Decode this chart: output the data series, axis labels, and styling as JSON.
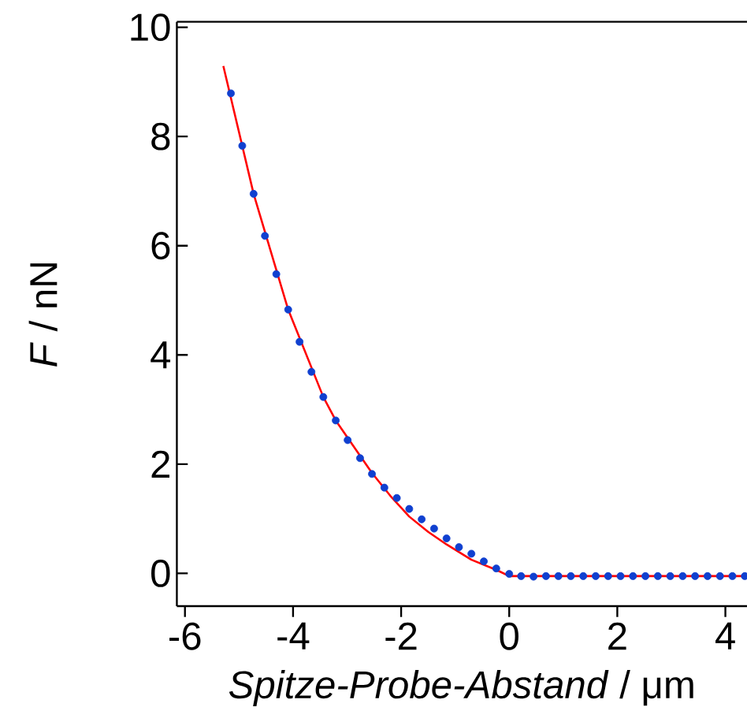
{
  "chart_data": {
    "type": "scatter",
    "xlabel": "*Spitze-Probe-Abstand* / μm",
    "ylabel": "*F* / nN",
    "xlim": [
      -6.15,
      4.4
    ],
    "ylim": [
      -0.6,
      10.1
    ],
    "marker": "circle",
    "xticks": [
      -6,
      -4,
      -2,
      0,
      2,
      4
    ],
    "yticks": [
      0,
      2,
      4,
      6,
      8,
      10
    ],
    "series": [
      {
        "type": "scatter",
        "color": "#1040d0",
        "x": [
          -5.15,
          -4.94,
          -4.73,
          -4.52,
          -4.31,
          -4.09,
          -3.88,
          -3.66,
          -3.44,
          -3.21,
          -2.99,
          -2.76,
          -2.54,
          -2.31,
          -2.08,
          -1.85,
          -1.62,
          -1.39,
          -1.16,
          -0.93,
          -0.7,
          -0.47,
          -0.24,
          0,
          0.22,
          0.45,
          0.68,
          0.91,
          1.14,
          1.37,
          1.6,
          1.83,
          2.06,
          2.29,
          2.52,
          2.75,
          2.98,
          3.21,
          3.44,
          3.67,
          3.9,
          4.13,
          4.36
        ],
        "values": [
          8.79,
          7.83,
          6.95,
          6.18,
          5.48,
          4.83,
          4.24,
          3.69,
          3.23,
          2.8,
          2.44,
          2.11,
          1.82,
          1.57,
          1.38,
          1.18,
          0.99,
          0.82,
          0.64,
          0.48,
          0.36,
          0.22,
          0.09,
          -0.01,
          -0.05,
          -0.06,
          -0.05,
          -0.05,
          -0.05,
          -0.05,
          -0.05,
          -0.05,
          -0.05,
          -0.05,
          -0.05,
          -0.05,
          -0.05,
          -0.05,
          -0.05,
          -0.05,
          -0.05,
          -0.05,
          -0.05
        ]
      },
      {
        "type": "line",
        "color": "#ff0000",
        "marker": "none",
        "x": [
          -5.29,
          -4.73,
          -4.09,
          -3.44,
          -3.21,
          -2.54,
          -2.2,
          -1.85,
          -1.5,
          -1.16,
          -0.7,
          -0.23,
          0,
          4.4
        ],
        "values": [
          9.29,
          6.95,
          4.83,
          3.23,
          2.8,
          1.84,
          1.42,
          1.04,
          0.76,
          0.53,
          0.25,
          0.06,
          -0.05,
          -0.05
        ]
      }
    ]
  }
}
